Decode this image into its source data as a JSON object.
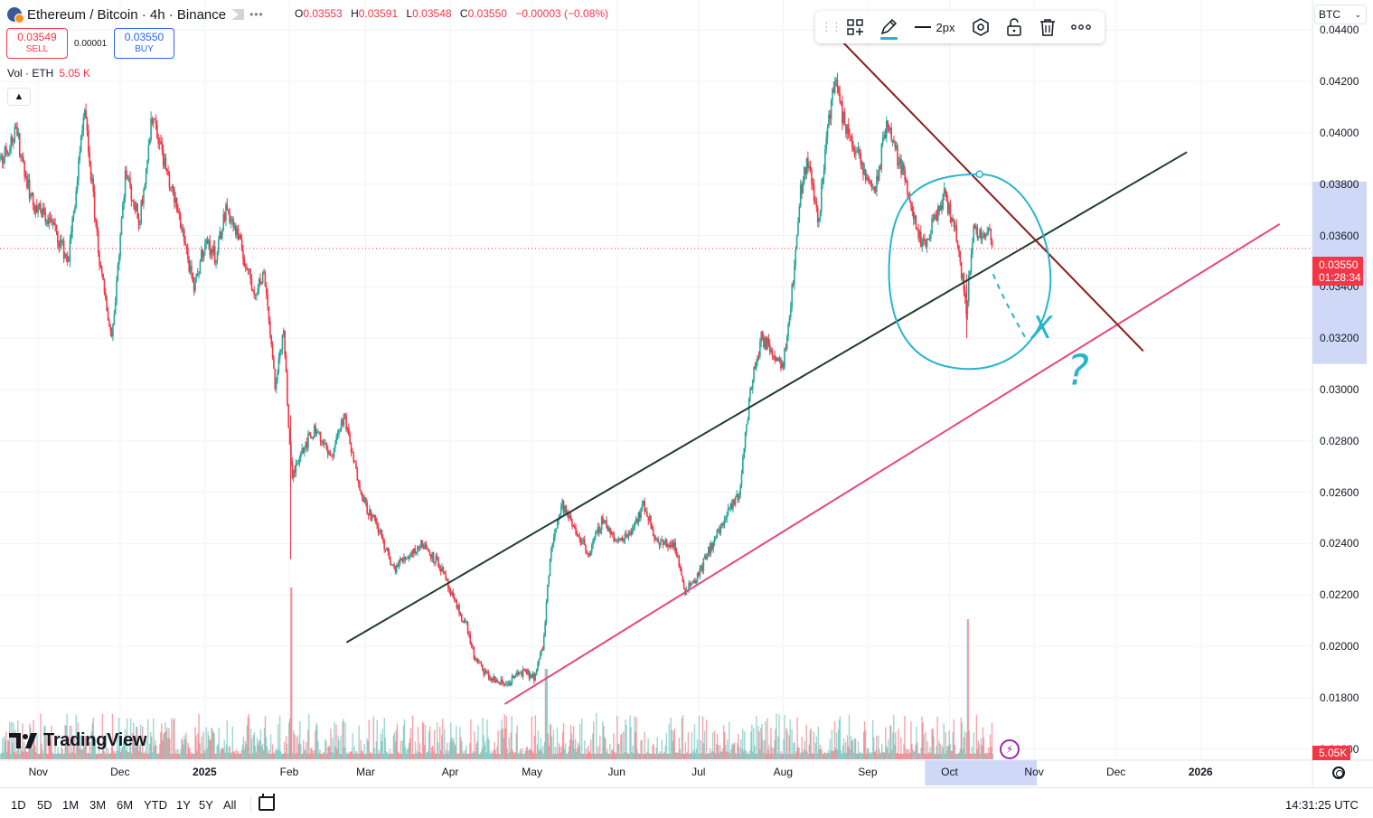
{
  "header": {
    "title": "Ethereum / Bitcoin · 4h · Binance",
    "ohlc": [
      {
        "key": "O",
        "value": "0.03553"
      },
      {
        "key": "H",
        "value": "0.03591"
      },
      {
        "key": "L",
        "value": "0.03548"
      },
      {
        "key": "C",
        "value": "0.03550"
      }
    ],
    "change": "−0.00003 (−0.08%)",
    "sell_price": "0.03549",
    "sell_label": "SELL",
    "spread": "0.00001",
    "buy_price": "0.03550",
    "buy_label": "BUY",
    "volume_label": "Vol · ETH",
    "volume_value": "5.05 K",
    "collapse_icon": "chevron-up-icon"
  },
  "toolbar": {
    "width_label": "2px",
    "icons": [
      "drag-handle-icon",
      "object-tree-icon",
      "pencil-icon",
      "line-width-icon",
      "settings-hex-icon",
      "unlock-icon",
      "trash-icon",
      "more-dots-icon"
    ]
  },
  "axis": {
    "currency": "BTC",
    "current_price": "0.03550",
    "countdown": "01:28:34",
    "volume_badge": "5.05K"
  },
  "bottom_bar": {
    "ranges": [
      "1D",
      "5D",
      "1M",
      "3M",
      "6M",
      "YTD",
      "1Y",
      "5Y",
      "All"
    ],
    "clock": "14:31:25 UTC"
  },
  "branding": {
    "logo_text": "TradingView"
  },
  "colors": {
    "up": "#26a69a",
    "down": "#f23645",
    "trend_green": "#1f3d2c",
    "trend_pink": "#e8467c",
    "trend_darkred": "#8b1a1a",
    "annotation": "#26b5cc",
    "highlight": "#cfd9f7"
  },
  "chart_data": {
    "type": "candlestick",
    "symbol": "ETHBTC",
    "interval": "4h",
    "exchange": "Binance",
    "ylim": [
      0.0156,
      0.045
    ],
    "y_ticks": [
      "0.04400",
      "0.04200",
      "0.04000",
      "0.03800",
      "0.03600",
      "0.03400",
      "0.03200",
      "0.03000",
      "0.02800",
      "0.02600",
      "0.02400",
      "0.02200",
      "0.02000",
      "0.01800",
      "0.01600"
    ],
    "x_ticks": [
      {
        "label": "Nov",
        "t": -61,
        "bold": false
      },
      {
        "label": "Dec",
        "t": -31,
        "bold": false
      },
      {
        "label": "2025",
        "t": 0,
        "bold": true
      },
      {
        "label": "Feb",
        "t": 31,
        "bold": false
      },
      {
        "label": "Mar",
        "t": 59,
        "bold": false
      },
      {
        "label": "Apr",
        "t": 90,
        "bold": false
      },
      {
        "label": "May",
        "t": 120,
        "bold": false
      },
      {
        "label": "Jun",
        "t": 151,
        "bold": false
      },
      {
        "label": "Jul",
        "t": 181,
        "bold": false
      },
      {
        "label": "Aug",
        "t": 212,
        "bold": false
      },
      {
        "label": "Sep",
        "t": 243,
        "bold": false
      },
      {
        "label": "Oct",
        "t": 273,
        "bold": false
      },
      {
        "label": "Nov",
        "t": 304,
        "bold": false
      },
      {
        "label": "Dec",
        "t": 334,
        "bold": false
      },
      {
        "label": "2026",
        "t": 365,
        "bold": true
      }
    ],
    "x_range_days": [
      -75,
      406
    ],
    "price_path": [
      [
        -75,
        0.039
      ],
      [
        -69,
        0.04
      ],
      [
        -63,
        0.0372
      ],
      [
        -56,
        0.0365
      ],
      [
        -50,
        0.035
      ],
      [
        -44,
        0.0408
      ],
      [
        -38,
        0.0345
      ],
      [
        -34,
        0.032
      ],
      [
        -29,
        0.0385
      ],
      [
        -24,
        0.0365
      ],
      [
        -19,
        0.0408
      ],
      [
        -14,
        0.0385
      ],
      [
        -8,
        0.0362
      ],
      [
        -4,
        0.0338
      ],
      [
        0,
        0.0358
      ],
      [
        4,
        0.0352
      ],
      [
        8,
        0.0371
      ],
      [
        12,
        0.036
      ],
      [
        18,
        0.0338
      ],
      [
        22,
        0.0345
      ],
      [
        26,
        0.03
      ],
      [
        29,
        0.0325
      ],
      [
        31,
        0.028
      ],
      [
        32,
        0.0265
      ],
      [
        35,
        0.0276
      ],
      [
        41,
        0.0285
      ],
      [
        46,
        0.0273
      ],
      [
        51,
        0.029
      ],
      [
        55,
        0.027
      ],
      [
        59,
        0.0255
      ],
      [
        64,
        0.0245
      ],
      [
        69,
        0.023
      ],
      [
        74,
        0.0235
      ],
      [
        80,
        0.024
      ],
      [
        86,
        0.0232
      ],
      [
        91,
        0.0218
      ],
      [
        96,
        0.0208
      ],
      [
        99,
        0.0195
      ],
      [
        104,
        0.0188
      ],
      [
        110,
        0.0185
      ],
      [
        116,
        0.019
      ],
      [
        121,
        0.0188
      ],
      [
        124,
        0.02
      ],
      [
        127,
        0.024
      ],
      [
        131,
        0.0255
      ],
      [
        136,
        0.0245
      ],
      [
        141,
        0.0236
      ],
      [
        146,
        0.025
      ],
      [
        151,
        0.024
      ],
      [
        156,
        0.0245
      ],
      [
        161,
        0.0255
      ],
      [
        166,
        0.024
      ],
      [
        172,
        0.024
      ],
      [
        176,
        0.0222
      ],
      [
        181,
        0.0228
      ],
      [
        186,
        0.024
      ],
      [
        191,
        0.025
      ],
      [
        196,
        0.026
      ],
      [
        200,
        0.03
      ],
      [
        204,
        0.032
      ],
      [
        208,
        0.0315
      ],
      [
        212,
        0.031
      ],
      [
        216,
        0.0345
      ],
      [
        218,
        0.0375
      ],
      [
        221,
        0.039
      ],
      [
        225,
        0.0365
      ],
      [
        228,
        0.04
      ],
      [
        231,
        0.0422
      ],
      [
        234,
        0.0405
      ],
      [
        238,
        0.0395
      ],
      [
        242,
        0.0383
      ],
      [
        246,
        0.0378
      ],
      [
        250,
        0.0405
      ],
      [
        254,
        0.039
      ],
      [
        258,
        0.0378
      ],
      [
        261,
        0.036
      ],
      [
        264,
        0.0355
      ],
      [
        267,
        0.0365
      ],
      [
        271,
        0.0375
      ],
      [
        274,
        0.0368
      ],
      [
        277,
        0.035
      ],
      [
        279,
        0.033
      ],
      [
        282,
        0.0365
      ],
      [
        285,
        0.0358
      ],
      [
        287,
        0.0362
      ],
      [
        289,
        0.0355
      ]
    ],
    "trendlines": [
      {
        "name": "green-channel-line",
        "color": "#1f3d2c",
        "points": [
          [
            52,
            0.02015
          ],
          [
            360,
            0.03925
          ]
        ]
      },
      {
        "name": "pink-support-line",
        "color": "#e8467c",
        "points": [
          [
            110,
            0.01775
          ],
          [
            394,
            0.03645
          ]
        ]
      },
      {
        "name": "darkred-resistance-line",
        "color": "#8b1a1a",
        "points": [
          [
            228,
            0.04418
          ],
          [
            344,
            0.0315
          ]
        ]
      }
    ],
    "annotations": [
      {
        "name": "blue-circle-annotation",
        "type": "ellipse",
        "center": [
          280,
          0.03487
        ],
        "color": "#26b5cc"
      },
      {
        "name": "dotted-projection-annotation",
        "type": "dashed",
        "from": [
          289,
          0.0345
        ],
        "to": [
          302,
          0.0318
        ]
      },
      {
        "name": "x-mark-annotation",
        "type": "text",
        "text": "X",
        "at": [
          303,
          0.032
        ]
      },
      {
        "name": "question-mark-annotation",
        "type": "text",
        "text": "?",
        "at": [
          316,
          0.0302
        ]
      }
    ],
    "time_highlight": [
      273,
      304
    ]
  }
}
